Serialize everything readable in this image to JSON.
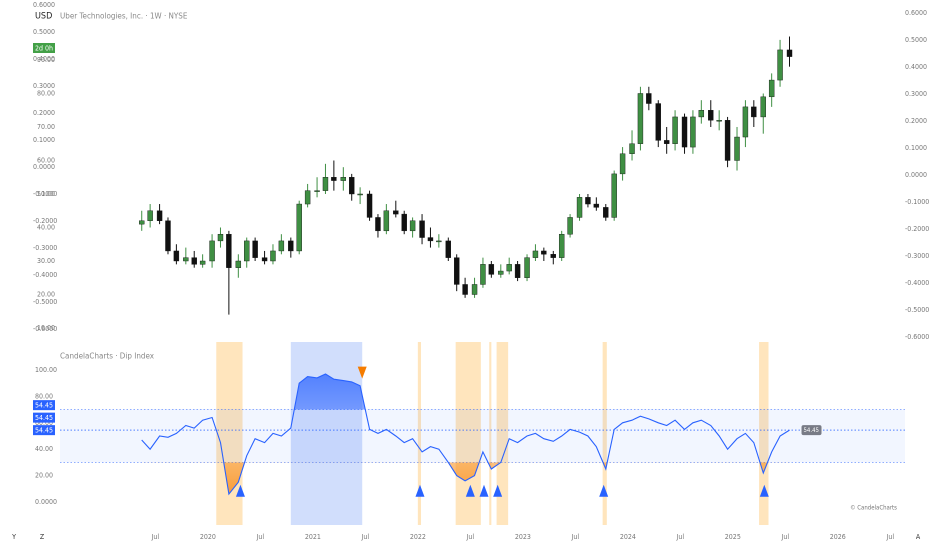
{
  "ui": {
    "currency": "USD",
    "symbol_title": "Uber Technologies, Inc. · 1W · NYSE",
    "countdown": "2d 0h",
    "indicator_title": "CandelaCharts · Dip Index",
    "watermark": "© CandelaCharts",
    "corner_left_1": "Y",
    "corner_left_2": "Z",
    "corner_right": "A"
  },
  "chart_data": [
    {
      "type": "candlestick",
      "xlim": [
        2018.02,
        2026.64
      ],
      "xticks": [
        {
          "value": 2019.5,
          "label": "Jul"
        },
        {
          "value": 2020,
          "label": "2020"
        },
        {
          "value": 2020.5,
          "label": "Jul"
        },
        {
          "value": 2021,
          "label": "2021"
        },
        {
          "value": 2021.5,
          "label": "Jul"
        },
        {
          "value": 2022,
          "label": "2022"
        },
        {
          "value": 2022.5,
          "label": "Jul"
        },
        {
          "value": 2023,
          "label": "2023"
        },
        {
          "value": 2023.5,
          "label": "Jul"
        },
        {
          "value": 2024,
          "label": "2024"
        },
        {
          "value": 2024.5,
          "label": "Jul"
        },
        {
          "value": 2025,
          "label": "2025"
        },
        {
          "value": 2025.5,
          "label": "Jul"
        },
        {
          "value": 2026,
          "label": "2026"
        },
        {
          "value": 2026.5,
          "label": "Jul"
        }
      ],
      "ylim": [
        6.42,
        107.9
      ],
      "yticks": [
        {
          "value": 90,
          "label": "90.00"
        },
        {
          "value": 80,
          "label": "80.00"
        },
        {
          "value": 70,
          "label": "70.00"
        },
        {
          "value": 60,
          "label": "60.00"
        },
        {
          "value": 50,
          "label": "50.00"
        },
        {
          "value": 40,
          "label": "40.00"
        },
        {
          "value": 30,
          "label": "30.00"
        },
        {
          "value": 20,
          "label": "20.00"
        },
        {
          "value": 10,
          "label": "10.00"
        }
      ],
      "y2lim": [
        -0.611,
        0.648
      ],
      "y2ticks": [
        {
          "value": 0.6,
          "label": "0.6000"
        },
        {
          "value": 0.5,
          "label": "0.5000"
        },
        {
          "value": 0.4,
          "label": "0.4000"
        },
        {
          "value": 0.3,
          "label": "0.3000"
        },
        {
          "value": 0.2,
          "label": "0.2000"
        },
        {
          "value": 0.1,
          "label": "0.1000"
        },
        {
          "value": 0,
          "label": "0.0000"
        },
        {
          "value": -0.1,
          "label": "-0.1000"
        },
        {
          "value": -0.2,
          "label": "-0.2000"
        },
        {
          "value": -0.3,
          "label": "-0.3000"
        },
        {
          "value": -0.4,
          "label": "-0.4000"
        },
        {
          "value": -0.5,
          "label": "-0.5000"
        },
        {
          "value": -0.6,
          "label": "-0.6000"
        }
      ],
      "up_color": "#3f8f43",
      "down_color": "#111111",
      "x": [
        2019.37,
        2019.45,
        2019.54,
        2019.62,
        2019.7,
        2019.79,
        2019.87,
        2019.95,
        2020.04,
        2020.12,
        2020.2,
        2020.29,
        2020.37,
        2020.45,
        2020.54,
        2020.62,
        2020.7,
        2020.79,
        2020.87,
        2020.95,
        2021.04,
        2021.12,
        2021.2,
        2021.29,
        2021.37,
        2021.45,
        2021.54,
        2021.62,
        2021.7,
        2021.79,
        2021.87,
        2021.95,
        2022.04,
        2022.12,
        2022.2,
        2022.29,
        2022.37,
        2022.45,
        2022.54,
        2022.62,
        2022.7,
        2022.79,
        2022.87,
        2022.95,
        2023.04,
        2023.12,
        2023.2,
        2023.29,
        2023.37,
        2023.45,
        2023.54,
        2023.62,
        2023.7,
        2023.79,
        2023.87,
        2023.95,
        2024.04,
        2024.12,
        2024.2,
        2024.29,
        2024.37,
        2024.45,
        2024.54,
        2024.62,
        2024.7,
        2024.79,
        2024.87,
        2024.95,
        2025.04,
        2025.12,
        2025.2,
        2025.29,
        2025.37,
        2025.45,
        2025.54
      ],
      "open": [
        41,
        42,
        45,
        42,
        33,
        30,
        31,
        29,
        30,
        36,
        38,
        28,
        30,
        36,
        31,
        30,
        33,
        36,
        33,
        47,
        51,
        51,
        55,
        54,
        55,
        50,
        50,
        43,
        39,
        45,
        44,
        39,
        42,
        37,
        36,
        36,
        31,
        23,
        20,
        23,
        29,
        26,
        27,
        29,
        25,
        31,
        33,
        32,
        31,
        38,
        43,
        49,
        47,
        46,
        43,
        56,
        62,
        65,
        80,
        77,
        66,
        65,
        73,
        64,
        73,
        75,
        72,
        72,
        60,
        67,
        76,
        73,
        79,
        84,
        93
      ],
      "high": [
        45,
        47,
        47,
        43,
        35,
        34,
        33,
        32,
        38,
        40,
        39,
        32,
        37,
        37,
        33,
        35,
        38,
        37,
        48,
        53,
        55,
        59,
        60,
        58,
        56,
        52,
        51,
        44,
        47,
        48,
        45,
        43,
        44,
        40,
        38,
        37,
        32,
        25,
        25,
        31,
        30,
        29,
        31,
        30,
        32,
        35,
        34,
        33,
        39,
        44,
        50,
        50,
        49,
        47,
        57,
        64,
        69,
        82,
        82,
        78,
        70,
        75,
        74,
        75,
        78,
        78,
        75,
        73,
        70,
        78,
        78,
        80,
        86,
        96,
        97
      ],
      "low": [
        39,
        40,
        41,
        32,
        29,
        29,
        28,
        28,
        28,
        34,
        14,
        25,
        28,
        30,
        29,
        29,
        32,
        31,
        32,
        46,
        49,
        50,
        51,
        51,
        48,
        47,
        42,
        37,
        38,
        43,
        38,
        37,
        35,
        34,
        34,
        30,
        21,
        19,
        19,
        22,
        25,
        25,
        26,
        24,
        24,
        30,
        30,
        29,
        30,
        37,
        42,
        46,
        45,
        42,
        42,
        54,
        60,
        63,
        75,
        64,
        62,
        63,
        62,
        62,
        71,
        70,
        69,
        58,
        57,
        64,
        70,
        68,
        76,
        82,
        88
      ],
      "close": [
        42,
        45,
        42,
        33,
        30,
        31,
        29,
        30,
        36,
        38,
        28,
        30,
        36,
        31,
        30,
        33,
        36,
        33,
        47,
        51,
        51,
        55,
        54,
        55,
        50,
        50,
        43,
        39,
        45,
        44,
        39,
        42,
        37,
        36,
        36,
        31,
        23,
        20,
        23,
        29,
        26,
        27,
        29,
        25,
        31,
        33,
        32,
        31,
        38,
        43,
        49,
        47,
        46,
        43,
        56,
        62,
        65,
        80,
        77,
        66,
        65,
        73,
        64,
        73,
        75,
        72,
        72,
        60,
        67,
        76,
        73,
        79,
        84,
        93,
        91
      ]
    },
    {
      "type": "line",
      "ylim": [
        -13.6,
        121.2
      ],
      "yticks": [
        {
          "value": 100,
          "label": "100.00"
        },
        {
          "value": 80,
          "label": "80.00"
        },
        {
          "value": 60,
          "label": "60.00"
        },
        {
          "value": 40,
          "label": "40.00"
        },
        {
          "value": 20,
          "label": "20.00"
        },
        {
          "value": 0,
          "label": "0.0000"
        }
      ],
      "color": "#2962ff",
      "upper_band": 70,
      "lower_band": 30,
      "mid_level": 54.45,
      "level_labels": [
        "54.45",
        "54.45",
        "54.45"
      ],
      "last_label": "54.45",
      "x": [
        2019.37,
        2019.45,
        2019.54,
        2019.62,
        2019.7,
        2019.79,
        2019.87,
        2019.95,
        2020.04,
        2020.12,
        2020.2,
        2020.29,
        2020.37,
        2020.45,
        2020.54,
        2020.62,
        2020.7,
        2020.79,
        2020.87,
        2020.95,
        2021.04,
        2021.12,
        2021.2,
        2021.29,
        2021.37,
        2021.45,
        2021.54,
        2021.62,
        2021.7,
        2021.79,
        2021.87,
        2021.95,
        2022.04,
        2022.12,
        2022.2,
        2022.29,
        2022.37,
        2022.45,
        2022.54,
        2022.62,
        2022.7,
        2022.79,
        2022.87,
        2022.95,
        2023.04,
        2023.12,
        2023.2,
        2023.29,
        2023.37,
        2023.45,
        2023.54,
        2023.62,
        2023.7,
        2023.79,
        2023.87,
        2023.95,
        2024.04,
        2024.12,
        2024.2,
        2024.29,
        2024.37,
        2024.45,
        2024.54,
        2024.62,
        2024.7,
        2024.79,
        2024.87,
        2024.95,
        2025.04,
        2025.12,
        2025.2,
        2025.29,
        2025.37,
        2025.45,
        2025.54
      ],
      "values": [
        47,
        40,
        50,
        49,
        52,
        58,
        56,
        62,
        64,
        45,
        6,
        15,
        35,
        48,
        45,
        52,
        50,
        56,
        90,
        95,
        94,
        97,
        93,
        92,
        91,
        88,
        55,
        52,
        55,
        50,
        45,
        48,
        38,
        42,
        40,
        30,
        20,
        16,
        20,
        38,
        25,
        30,
        48,
        45,
        50,
        52,
        48,
        46,
        50,
        55,
        53,
        50,
        42,
        25,
        55,
        60,
        62,
        65,
        63,
        60,
        58,
        62,
        55,
        60,
        62,
        58,
        50,
        40,
        48,
        52,
        45,
        22,
        38,
        50,
        54.45
      ],
      "highlight_ranges": [
        {
          "start": 2020.08,
          "end": 2020.33,
          "color": "#ffe0b2"
        },
        {
          "start": 2020.79,
          "end": 2021.47,
          "color": "#c9d8fb"
        },
        {
          "start": 2022.0,
          "end": 2022.03,
          "color": "#ffe0b2"
        },
        {
          "start": 2022.36,
          "end": 2022.6,
          "color": "#ffe0b2"
        },
        {
          "start": 2022.68,
          "end": 2022.7,
          "color": "#ffe0b2"
        },
        {
          "start": 2022.75,
          "end": 2022.86,
          "color": "#ffe0b2"
        },
        {
          "start": 2023.76,
          "end": 2023.8,
          "color": "#ffe0b2"
        },
        {
          "start": 2025.25,
          "end": 2025.34,
          "color": "#ffe0b2"
        }
      ],
      "signals": [
        {
          "x": 2020.31,
          "y": 4,
          "direction": "up",
          "color": "#2962ff"
        },
        {
          "x": 2021.47,
          "y": 98,
          "direction": "down",
          "color": "#f57c00"
        },
        {
          "x": 2022.02,
          "y": 4,
          "direction": "up",
          "color": "#2962ff"
        },
        {
          "x": 2022.5,
          "y": 4,
          "direction": "up",
          "color": "#2962ff"
        },
        {
          "x": 2022.63,
          "y": 4,
          "direction": "up",
          "color": "#2962ff"
        },
        {
          "x": 2022.76,
          "y": 4,
          "direction": "up",
          "color": "#2962ff"
        },
        {
          "x": 2023.77,
          "y": 4,
          "direction": "up",
          "color": "#2962ff"
        },
        {
          "x": 2025.3,
          "y": 4,
          "direction": "up",
          "color": "#2962ff"
        }
      ]
    }
  ]
}
